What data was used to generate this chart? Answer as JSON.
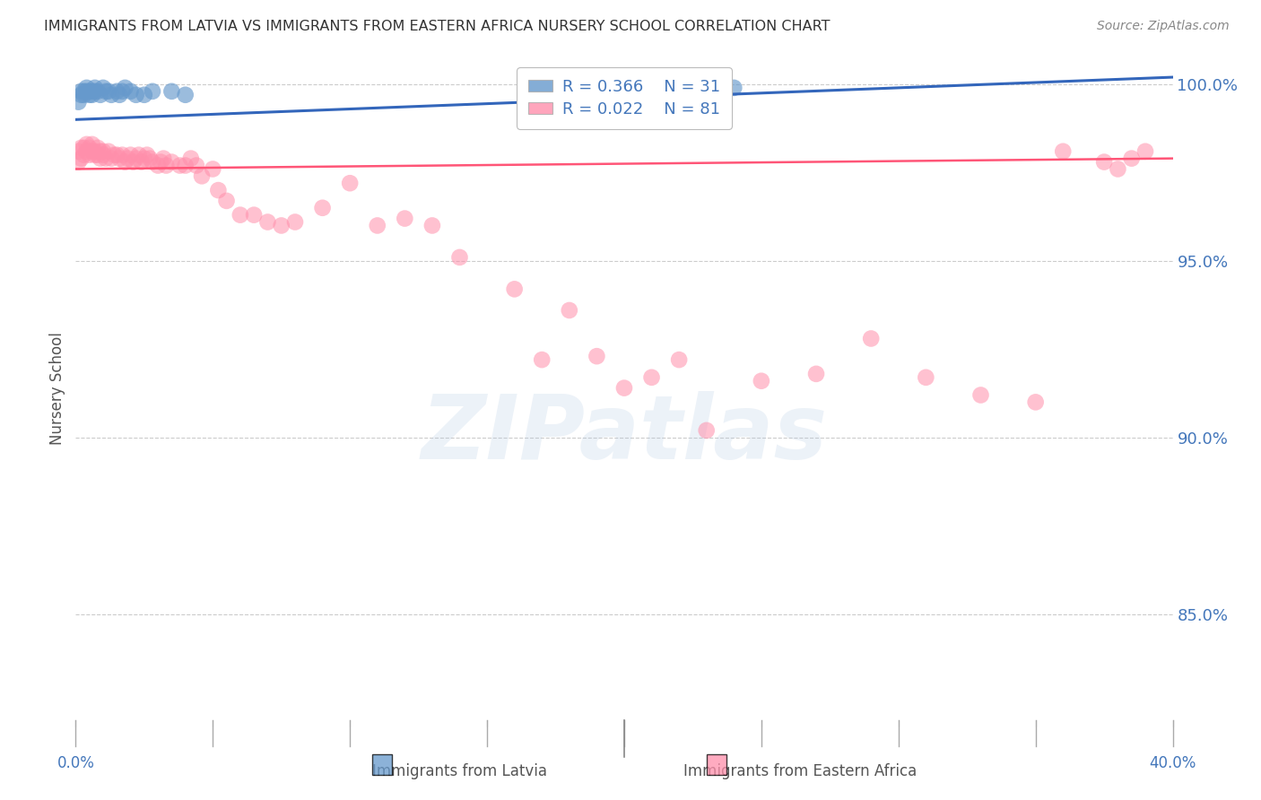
{
  "title": "IMMIGRANTS FROM LATVIA VS IMMIGRANTS FROM EASTERN AFRICA NURSERY SCHOOL CORRELATION CHART",
  "source": "Source: ZipAtlas.com",
  "ylabel": "Nursery School",
  "xlim": [
    0.0,
    0.4
  ],
  "ylim": [
    0.82,
    1.008
  ],
  "yticks": [
    0.85,
    0.9,
    0.95,
    1.0
  ],
  "ytick_labels": [
    "85.0%",
    "90.0%",
    "95.0%",
    "100.0%"
  ],
  "legend_blue_r": "R = 0.366",
  "legend_blue_n": "N = 31",
  "legend_pink_r": "R = 0.022",
  "legend_pink_n": "N = 81",
  "blue_color": "#6699CC",
  "pink_color": "#FF8FAB",
  "blue_line_color": "#3366BB",
  "pink_line_color": "#FF5577",
  "blue_scatter_x": [
    0.001,
    0.002,
    0.002,
    0.003,
    0.003,
    0.004,
    0.004,
    0.005,
    0.005,
    0.006,
    0.006,
    0.007,
    0.007,
    0.008,
    0.009,
    0.01,
    0.011,
    0.012,
    0.013,
    0.015,
    0.016,
    0.017,
    0.018,
    0.02,
    0.022,
    0.025,
    0.028,
    0.035,
    0.04,
    0.18,
    0.24
  ],
  "blue_scatter_y": [
    0.995,
    0.997,
    0.998,
    0.998,
    0.997,
    0.999,
    0.998,
    0.998,
    0.997,
    0.998,
    0.997,
    0.999,
    0.998,
    0.998,
    0.997,
    0.999,
    0.998,
    0.998,
    0.997,
    0.998,
    0.997,
    0.998,
    0.999,
    0.998,
    0.997,
    0.997,
    0.998,
    0.998,
    0.997,
    0.999,
    0.999
  ],
  "pink_scatter_x": [
    0.001,
    0.001,
    0.002,
    0.002,
    0.003,
    0.003,
    0.004,
    0.004,
    0.005,
    0.005,
    0.006,
    0.006,
    0.007,
    0.007,
    0.008,
    0.008,
    0.009,
    0.009,
    0.01,
    0.01,
    0.011,
    0.012,
    0.013,
    0.014,
    0.015,
    0.016,
    0.017,
    0.018,
    0.019,
    0.02,
    0.021,
    0.022,
    0.023,
    0.024,
    0.025,
    0.026,
    0.027,
    0.028,
    0.03,
    0.031,
    0.032,
    0.033,
    0.035,
    0.038,
    0.04,
    0.042,
    0.044,
    0.046,
    0.05,
    0.052,
    0.055,
    0.06,
    0.065,
    0.07,
    0.075,
    0.08,
    0.09,
    0.1,
    0.11,
    0.12,
    0.13,
    0.14,
    0.16,
    0.17,
    0.18,
    0.19,
    0.2,
    0.21,
    0.22,
    0.23,
    0.25,
    0.27,
    0.29,
    0.31,
    0.33,
    0.35,
    0.36,
    0.375,
    0.38,
    0.385,
    0.39
  ],
  "pink_scatter_y": [
    0.981,
    0.978,
    0.982,
    0.979,
    0.982,
    0.98,
    0.983,
    0.981,
    0.982,
    0.98,
    0.983,
    0.981,
    0.98,
    0.981,
    0.982,
    0.98,
    0.981,
    0.979,
    0.981,
    0.98,
    0.979,
    0.981,
    0.979,
    0.98,
    0.98,
    0.979,
    0.98,
    0.978,
    0.979,
    0.98,
    0.978,
    0.979,
    0.98,
    0.978,
    0.979,
    0.98,
    0.979,
    0.978,
    0.977,
    0.978,
    0.979,
    0.977,
    0.978,
    0.977,
    0.977,
    0.979,
    0.977,
    0.974,
    0.976,
    0.97,
    0.967,
    0.963,
    0.963,
    0.961,
    0.96,
    0.961,
    0.965,
    0.972,
    0.96,
    0.962,
    0.96,
    0.951,
    0.942,
    0.922,
    0.936,
    0.923,
    0.914,
    0.917,
    0.922,
    0.902,
    0.916,
    0.918,
    0.928,
    0.917,
    0.912,
    0.91,
    0.981,
    0.978,
    0.976,
    0.979,
    0.981
  ],
  "blue_trendline_x": [
    0.0,
    0.4
  ],
  "blue_trendline_y": [
    0.99,
    1.002
  ],
  "pink_trendline_x": [
    0.0,
    0.4
  ],
  "pink_trendline_y": [
    0.976,
    0.979
  ],
  "watermark_text": "ZIPatlas",
  "background_color": "#ffffff",
  "grid_color": "#cccccc",
  "title_color": "#333333",
  "axis_label_color": "#4477BB",
  "bottom_label_color": "#555555"
}
